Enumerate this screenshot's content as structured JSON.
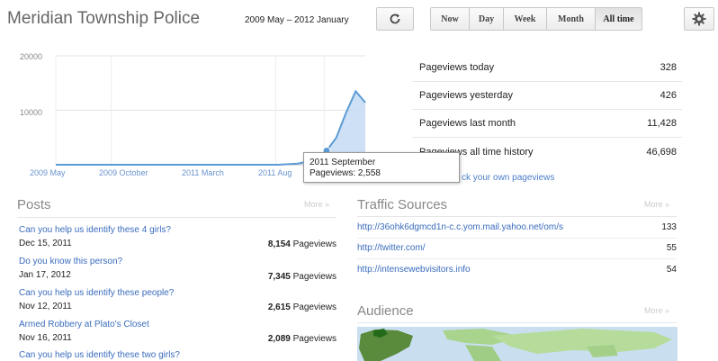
{
  "header": {
    "title": "Meridian Township Police",
    "date_range": "2009 May – 2012 January",
    "refresh_icon": "refresh-icon",
    "ranges": [
      {
        "label": "Now",
        "active": false
      },
      {
        "label": "Day",
        "active": false
      },
      {
        "label": "Week",
        "active": false
      },
      {
        "label": "Month",
        "active": false
      },
      {
        "label": "All time",
        "active": true
      }
    ],
    "settings_icon": "gear-icon"
  },
  "chart_data": {
    "type": "area",
    "x": [
      "2009 May",
      "2009 Jun",
      "2009 Jul",
      "2009 Aug",
      "2009 Sep",
      "2009 Oct",
      "2009 Nov",
      "2009 Dec",
      "2010 Jan",
      "2010 Feb",
      "2010 Mar",
      "2010 Apr",
      "2010 May",
      "2010 Jun",
      "2010 Jul",
      "2010 Aug",
      "2010 Sep",
      "2010 Oct",
      "2010 Nov",
      "2010 Dec",
      "2011 Jan",
      "2011 Feb",
      "2011 Mar",
      "2011 Apr",
      "2011 May",
      "2011 Jun",
      "2011 Jul",
      "2011 Aug",
      "2011 Sep",
      "2011 Oct",
      "2011 Nov",
      "2011 Dec",
      "2012 Jan"
    ],
    "series": [
      {
        "values": [
          0,
          0,
          0,
          0,
          0,
          0,
          0,
          0,
          0,
          0,
          0,
          0,
          0,
          0,
          0,
          0,
          0,
          0,
          0,
          0,
          0,
          0,
          0,
          0,
          100,
          200,
          600,
          1200,
          2558,
          5000,
          9500,
          13500,
          11428
        ]
      }
    ],
    "y_ticks": [
      "20000",
      "10000"
    ],
    "ylim": [
      0,
      20000
    ],
    "x_ticks": [
      "2009 May",
      "2009 October",
      "2011 March",
      "2011 Aug"
    ],
    "x_tick_index": [
      0,
      5,
      22,
      27
    ],
    "highlight_index": 28,
    "tooltip": {
      "title": "2011 September",
      "label": "Pageviews: 2,558"
    },
    "colors": {
      "line": "#5b9bd5",
      "fill": "#c6daf3"
    }
  },
  "stats": [
    {
      "label": "Pageviews today",
      "value": "328"
    },
    {
      "label": "Pageviews yesterday",
      "value": "426"
    },
    {
      "label": "Pageviews last month",
      "value": "11,428"
    },
    {
      "label": "Pageviews all time history",
      "value": "46,698"
    }
  ],
  "check_link": "ck your own pageviews",
  "posts": {
    "title": "Posts",
    "more": "More »",
    "items": [
      {
        "title": "Can you help us identify these 4 girls?",
        "date": "Dec 15, 2011",
        "count": "8,154",
        "unit": "Pageviews"
      },
      {
        "title": "Do you know this person?",
        "date": "Jan 17, 2012",
        "count": "7,345",
        "unit": "Pageviews"
      },
      {
        "title": "Can you help us identify these people?",
        "date": "Nov 12, 2011",
        "count": "2,615",
        "unit": "Pageviews"
      },
      {
        "title": "Armed Robbery at Plato's Closet",
        "date": "Nov 16, 2011",
        "count": "2,089",
        "unit": "Pageviews"
      },
      {
        "title": "Can you help us identify these two girls?",
        "date": "",
        "count": "",
        "unit": ""
      }
    ]
  },
  "traffic": {
    "title": "Traffic Sources",
    "more": "More »",
    "items": [
      {
        "url": "http://36ohk6dgmcd1n-c.c.yom.mail.yahoo.net/om/s",
        "count": "133"
      },
      {
        "url": "http://twitter.com/",
        "count": "55"
      },
      {
        "url": "http://intensewebvisitors.info",
        "count": "54"
      }
    ]
  },
  "audience": {
    "title": "Audience",
    "more": "More »"
  }
}
